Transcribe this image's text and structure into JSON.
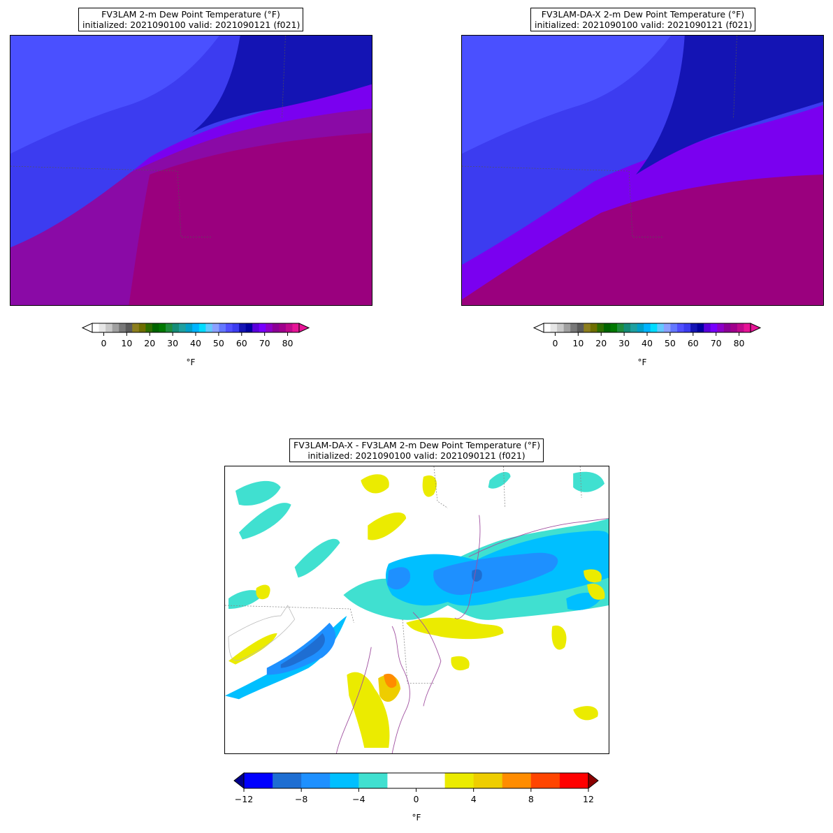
{
  "panels": [
    {
      "title_line1": "FV3LAM 2-m Dew Point Temperature (°F)",
      "title_line2": "initialized: 2021090100 valid: 2021090121 (f021)"
    },
    {
      "title_line1": "FV3LAM-DA-X 2-m Dew Point Temperature (°F)",
      "title_line2": "initialized: 2021090100 valid: 2021090121 (f021)"
    },
    {
      "title_line1": "FV3LAM-DA-X - FV3LAM 2-m Dew Point Temperature (°F)",
      "title_line2": "initialized: 2021090100 valid: 2021090121 (f021)"
    }
  ],
  "colorbars": {
    "dewpoint": {
      "ticks": [
        "0",
        "10",
        "20",
        "30",
        "40",
        "50",
        "60",
        "70",
        "80"
      ],
      "unit": "°F",
      "colors": [
        "#ffffff",
        "#e6e6e6",
        "#c8c8c8",
        "#a0a0a0",
        "#787878",
        "#5a5a5a",
        "#8c7e1e",
        "#6e6e00",
        "#2e6e00",
        "#006400",
        "#007800",
        "#1e8c3c",
        "#148c78",
        "#1ea0a0",
        "#00a0c8",
        "#00b4ff",
        "#00dcff",
        "#64c8ff",
        "#8ca0ff",
        "#6478ff",
        "#5050ff",
        "#3c3cf0",
        "#1414b4",
        "#0000a0",
        "#5a00dc",
        "#7800ff",
        "#8c00c8",
        "#8c0096",
        "#a0008c",
        "#be0a8c",
        "#e61496"
      ],
      "extend_low": "#ffffff",
      "extend_high": "#e61496"
    },
    "difference": {
      "ticks": [
        "−12",
        "−8",
        "−4",
        "0",
        "4",
        "8",
        "12"
      ],
      "unit": "°F",
      "colors": [
        "#0000ff",
        "#1e6ed2",
        "#1e90ff",
        "#00bfff",
        "#40e0d0",
        "#ffffff",
        "#ffffff",
        "#ebeb00",
        "#eecd00",
        "#ff8c00",
        "#ff4500",
        "#ff0000"
      ],
      "extend_low": "#00008b",
      "extend_high": "#8b0000"
    }
  },
  "chart_data": [
    {
      "type": "heatmap",
      "title": "FV3LAM 2-m Dew Point Temperature (°F)",
      "colorbar_range": [
        -5,
        85
      ],
      "colorbar_label": "°F",
      "description_regions": [
        {
          "region": "northwest",
          "range_F": [
            50,
            60
          ]
        },
        {
          "region": "central band",
          "range_F": [
            60,
            70
          ]
        },
        {
          "region": "south and east",
          "range_F": [
            70,
            80
          ]
        }
      ]
    },
    {
      "type": "heatmap",
      "title": "FV3LAM-DA-X 2-m Dew Point Temperature (°F)",
      "colorbar_range": [
        -5,
        85
      ],
      "colorbar_label": "°F",
      "description_regions": [
        {
          "region": "northwest",
          "range_F": [
            50,
            60
          ]
        },
        {
          "region": "central band",
          "range_F": [
            60,
            70
          ]
        },
        {
          "region": "south and east",
          "range_F": [
            70,
            80
          ]
        }
      ]
    },
    {
      "type": "heatmap",
      "title": "FV3LAM-DA-X - FV3LAM 2-m Dew Point Temperature (°F)",
      "colorbar_range": [
        -12,
        12
      ],
      "colorbar_label": "°F",
      "levels": [
        -12,
        -10,
        -8,
        -6,
        -4,
        -2,
        0,
        2,
        4,
        6,
        8,
        10,
        12
      ]
    }
  ]
}
